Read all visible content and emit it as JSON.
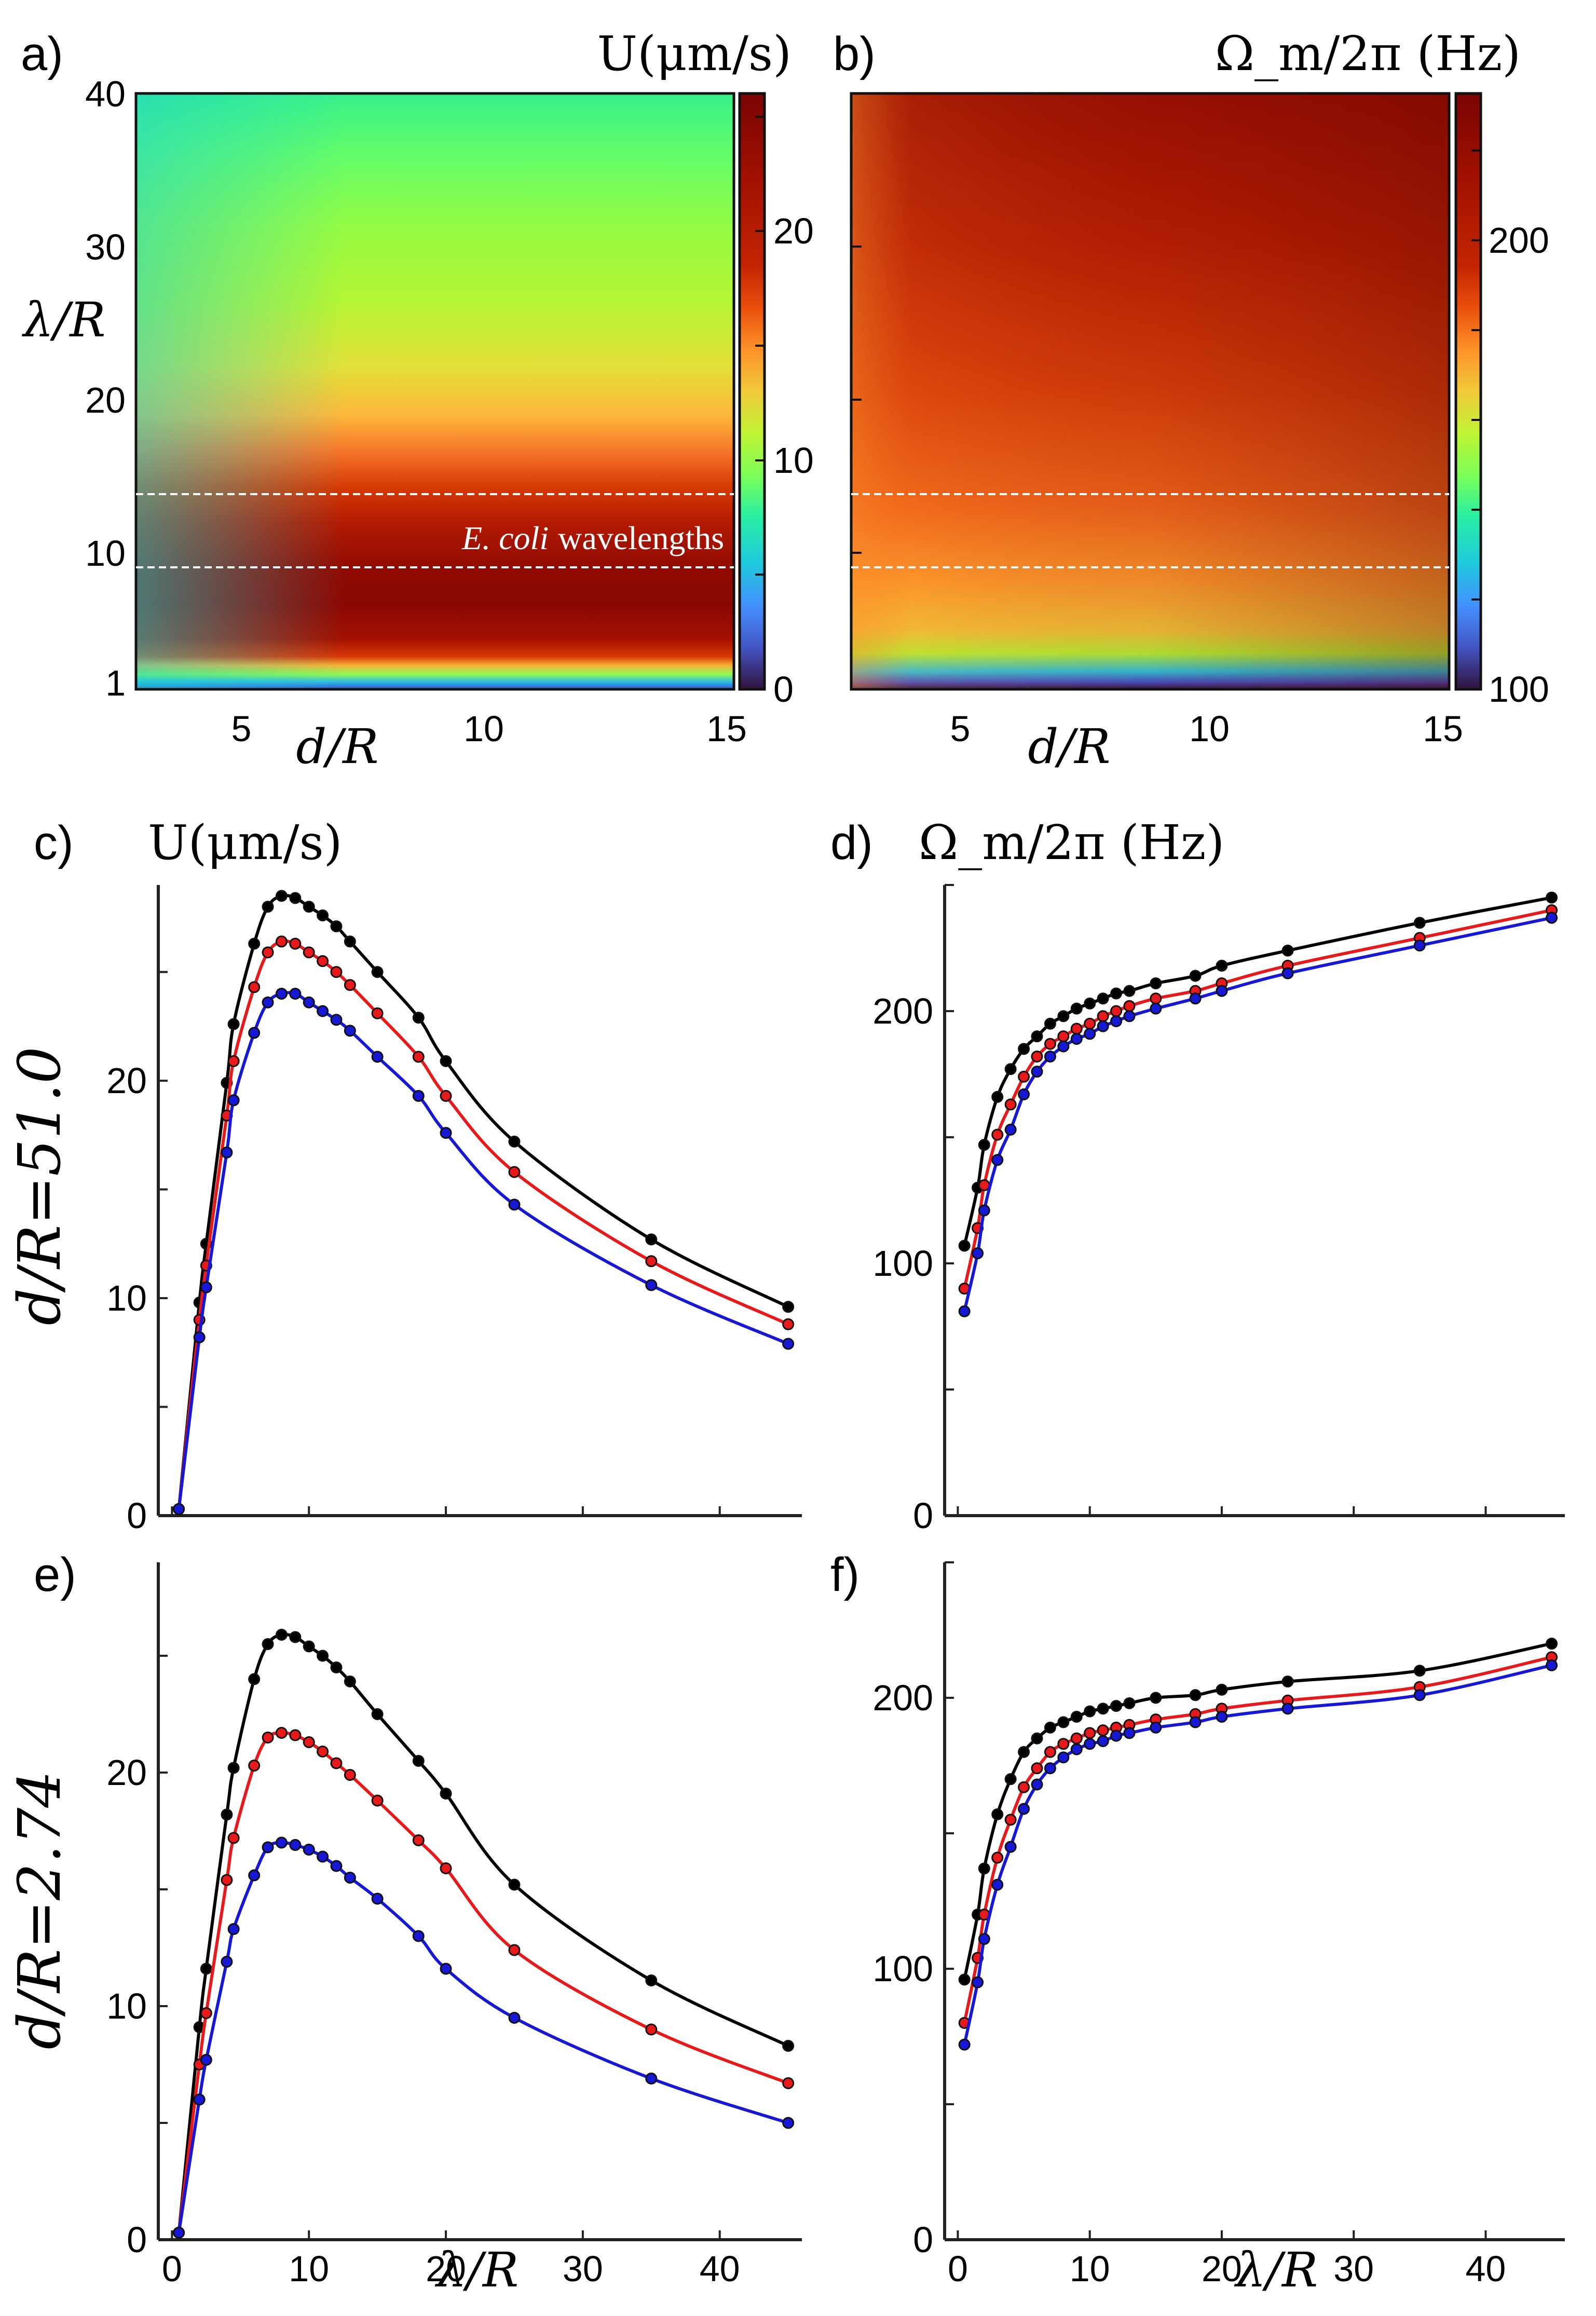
{
  "figure": {
    "panel_labels": [
      "a)",
      "b)",
      "c)",
      "d)",
      "e)",
      "f)"
    ]
  },
  "chart_data": [
    {
      "panel": "a)",
      "type": "heatmap",
      "colorbar_title": "U(μm/s)",
      "xlabel": "d/R",
      "ylabel": "λ/R",
      "x_ticks": [
        "5",
        "10",
        "15"
      ],
      "y_ticks": [
        "1",
        "10",
        "20",
        "30",
        "40"
      ],
      "colorbar_ticks": [
        "0",
        "10",
        "20"
      ],
      "xlim": [
        2.74,
        15
      ],
      "ylim": [
        0,
        40
      ],
      "value_range": [
        0,
        26
      ],
      "annotation_italic": "E. coli",
      "annotation_text": "wavelengths",
      "dashed_lines_lambda": [
        9,
        14
      ],
      "profile_lambda": [
        0,
        1,
        2,
        3,
        4,
        5,
        6,
        7,
        8,
        9,
        10,
        12,
        14,
        16,
        18,
        20,
        25,
        30,
        35,
        40
      ],
      "profile_U": [
        0.5,
        3,
        9,
        16,
        20.5,
        23,
        24.5,
        25.2,
        25.6,
        25.3,
        24.8,
        23.2,
        21.2,
        19.4,
        17.7,
        16.2,
        13.4,
        11.4,
        9.8,
        8.5
      ]
    },
    {
      "panel": "b)",
      "type": "heatmap",
      "colorbar_title": "Ω_m/2π (Hz)",
      "xlabel": "d/R",
      "x_ticks": [
        "5",
        "10",
        "15"
      ],
      "colorbar_ticks": [
        "100",
        "200"
      ],
      "xlim": [
        2.74,
        15
      ],
      "value_range": [
        95,
        225
      ],
      "dashed_lines_lambda": [
        9,
        14
      ]
    },
    {
      "panel": "c)",
      "type": "line",
      "title": "U(μm/s)",
      "ylabel": "d/R=51.0",
      "xlabel": "",
      "xlim": [
        -1,
        46
      ],
      "ylim": [
        0,
        29
      ],
      "x_ticks": [],
      "y_ticks": [
        "0",
        "10",
        "20"
      ],
      "x": [
        0.5,
        2,
        2.5,
        4,
        4.5,
        6,
        7,
        8,
        9,
        10,
        11,
        12,
        13,
        15,
        18,
        20,
        25,
        35,
        45
      ],
      "series": [
        {
          "name": "black",
          "color": "#000000",
          "values": [
            0.3,
            9.8,
            12.5,
            19.9,
            22.6,
            26.3,
            28.0,
            28.5,
            28.4,
            28.0,
            27.6,
            27.1,
            26.4,
            25.0,
            22.9,
            20.9,
            17.2,
            12.7,
            9.6
          ]
        },
        {
          "name": "red",
          "color": "#e8191b",
          "values": [
            0.3,
            9.0,
            11.5,
            18.4,
            20.9,
            24.3,
            25.9,
            26.4,
            26.3,
            25.9,
            25.5,
            25.0,
            24.4,
            23.1,
            21.1,
            19.3,
            15.8,
            11.7,
            8.8
          ]
        },
        {
          "name": "blue",
          "color": "#1717d6",
          "values": [
            0.3,
            8.2,
            10.5,
            16.7,
            19.1,
            22.2,
            23.6,
            24.0,
            24.0,
            23.6,
            23.2,
            22.8,
            22.3,
            21.1,
            19.3,
            17.6,
            14.3,
            10.6,
            7.9
          ]
        }
      ]
    },
    {
      "panel": "d)",
      "type": "line",
      "title": "Ω_m/2π (Hz)",
      "xlabel": "",
      "xlim": [
        -1,
        46
      ],
      "ylim": [
        0,
        250
      ],
      "x_ticks": [],
      "y_ticks": [
        "0",
        "100",
        "200"
      ],
      "x": [
        0.5,
        1.5,
        2,
        3,
        4,
        5,
        6,
        7,
        8,
        9,
        10,
        11,
        12,
        13,
        15,
        18,
        20,
        25,
        35,
        45
      ],
      "series": [
        {
          "name": "black",
          "color": "#000000",
          "values": [
            107,
            130,
            147,
            166,
            177,
            185,
            190,
            195,
            198,
            201,
            203,
            205,
            207,
            208,
            211,
            214,
            218,
            224,
            235,
            245
          ]
        },
        {
          "name": "red",
          "color": "#e8191b",
          "values": [
            90,
            114,
            131,
            151,
            163,
            174,
            182,
            187,
            190,
            193,
            195,
            198,
            200,
            202,
            205,
            208,
            211,
            218,
            229,
            240
          ]
        },
        {
          "name": "blue",
          "color": "#1717d6",
          "values": [
            81,
            104,
            121,
            141,
            153,
            167,
            176,
            182,
            186,
            189,
            191,
            194,
            196,
            198,
            201,
            205,
            208,
            215,
            226,
            237
          ]
        }
      ]
    },
    {
      "panel": "e)",
      "type": "line",
      "ylabel": "d/R=2.74",
      "xlabel": "λ/R",
      "xlim": [
        -1,
        46
      ],
      "ylim": [
        0,
        29
      ],
      "x_ticks": [
        "0",
        "10",
        "20",
        "30",
        "40"
      ],
      "y_ticks": [
        "0",
        "10",
        "20"
      ],
      "x": [
        0.5,
        2,
        2.5,
        4,
        4.5,
        6,
        7,
        8,
        9,
        10,
        11,
        12,
        13,
        15,
        18,
        20,
        25,
        35,
        45
      ],
      "series": [
        {
          "name": "black",
          "color": "#000000",
          "values": [
            0.3,
            9.1,
            11.6,
            18.2,
            20.2,
            24.0,
            25.5,
            25.9,
            25.8,
            25.4,
            25.0,
            24.5,
            23.9,
            22.5,
            20.5,
            19.1,
            15.2,
            11.1,
            8.3
          ]
        },
        {
          "name": "red",
          "color": "#e8191b",
          "values": [
            0.3,
            7.5,
            9.7,
            15.4,
            17.2,
            20.3,
            21.5,
            21.7,
            21.6,
            21.3,
            20.9,
            20.4,
            19.9,
            18.8,
            17.1,
            15.9,
            12.4,
            9.0,
            6.7
          ]
        },
        {
          "name": "blue",
          "color": "#1717d6",
          "values": [
            0.3,
            6.0,
            7.7,
            11.9,
            13.3,
            15.6,
            16.8,
            17.0,
            16.9,
            16.7,
            16.4,
            16.0,
            15.5,
            14.6,
            13.0,
            11.6,
            9.5,
            6.9,
            5.0
          ]
        }
      ]
    },
    {
      "panel": "f)",
      "type": "line",
      "xlabel": "λ/R",
      "xlim": [
        -1,
        46
      ],
      "ylim": [
        0,
        250
      ],
      "x_ticks": [
        "0",
        "10",
        "20",
        "30",
        "40"
      ],
      "y_ticks": [
        "0",
        "100",
        "200"
      ],
      "x": [
        0.5,
        1.5,
        2,
        3,
        4,
        5,
        6,
        7,
        8,
        9,
        10,
        11,
        12,
        13,
        15,
        18,
        20,
        25,
        35,
        45
      ],
      "series": [
        {
          "name": "black",
          "color": "#000000",
          "values": [
            96,
            120,
            137,
            157,
            170,
            180,
            185,
            189,
            191,
            193,
            195,
            196,
            197,
            198,
            200,
            201,
            203,
            206,
            210,
            220
          ]
        },
        {
          "name": "red",
          "color": "#e8191b",
          "values": [
            80,
            104,
            120,
            141,
            155,
            167,
            174,
            180,
            183,
            185,
            187,
            188,
            189,
            190,
            192,
            194,
            196,
            199,
            204,
            215
          ]
        },
        {
          "name": "blue",
          "color": "#1717d6",
          "values": [
            72,
            95,
            111,
            131,
            145,
            159,
            168,
            174,
            178,
            181,
            183,
            184,
            186,
            187,
            189,
            191,
            193,
            196,
            201,
            212
          ]
        }
      ]
    }
  ]
}
